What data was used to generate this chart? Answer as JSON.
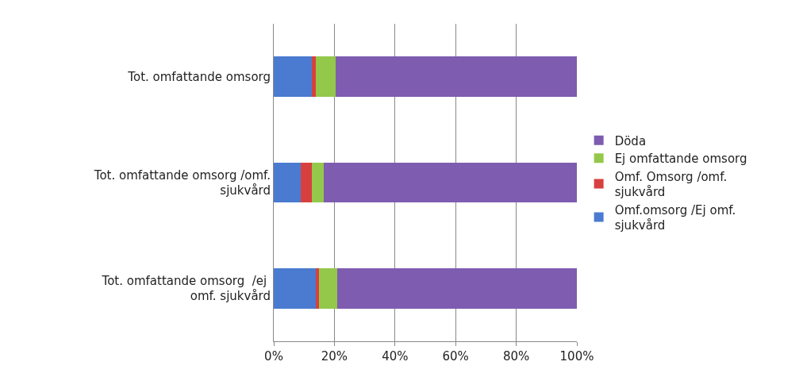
{
  "chart_data": {
    "type": "bar",
    "orientation": "horizontal",
    "stacked": true,
    "categories": [
      "Tot. omfattande omsorg",
      "Tot. omfattande omsorg /omf. sjukvård",
      "Tot. omfattande omsorg  /ej  omf. sjukvård"
    ],
    "series": [
      {
        "name": "Omf.omsorg /Ej omf. sjukvård",
        "color": "#4a7bd0",
        "values": [
          12.5,
          9,
          14
        ]
      },
      {
        "name": "Omf. Omsorg /omf. sjukvård",
        "color": "#d84040",
        "values": [
          1.5,
          3.5,
          1
        ]
      },
      {
        "name": "Ej omfattande omsorg",
        "color": "#94c84a",
        "values": [
          6.5,
          4,
          6
        ]
      },
      {
        "name": "Döda",
        "color": "#7e5cb0",
        "values": [
          79.5,
          83.5,
          79
        ]
      }
    ],
    "xlim": [
      0,
      100
    ],
    "xticks": [
      {
        "value": 0,
        "label": "0%"
      },
      {
        "value": 20,
        "label": "20%"
      },
      {
        "value": 40,
        "label": "40%"
      },
      {
        "value": 60,
        "label": "60%"
      },
      {
        "value": 80,
        "label": "80%"
      },
      {
        "value": 100,
        "label": "100%"
      }
    ],
    "grid": "x",
    "legend": "right"
  }
}
